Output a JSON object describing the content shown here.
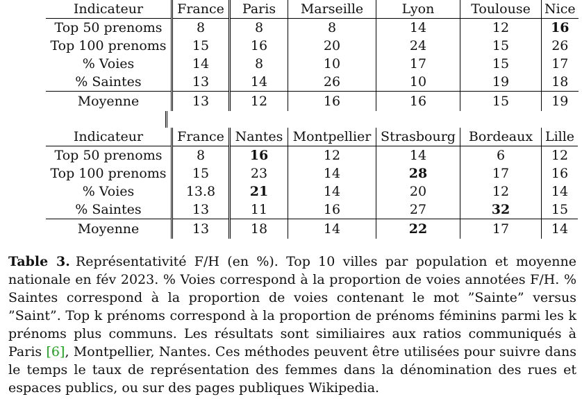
{
  "table_top": {
    "headers": [
      "Indicateur",
      "France",
      "Paris",
      "Marseille",
      "Lyon",
      "Toulouse",
      "Nice"
    ],
    "rows": [
      {
        "cells": [
          "Top 50 prenoms",
          "8",
          "8",
          "8",
          "14",
          "12",
          "16"
        ],
        "bold": [
          6
        ]
      },
      {
        "cells": [
          "Top 100 prenoms",
          "15",
          "16",
          "20",
          "24",
          "15",
          "26"
        ],
        "bold": []
      },
      {
        "cells": [
          "% Voies",
          "14",
          "8",
          "10",
          "17",
          "15",
          "17"
        ],
        "bold": []
      },
      {
        "cells": [
          "% Saintes",
          "13",
          "14",
          "26",
          "10",
          "19",
          "18"
        ],
        "bold": []
      }
    ],
    "average": {
      "cells": [
        "Moyenne",
        "13",
        "12",
        "16",
        "16",
        "15",
        "19"
      ],
      "bold": []
    }
  },
  "table_bottom": {
    "headers": [
      "Indicateur",
      "France",
      "Nantes",
      "Montpellier",
      "Strasbourg",
      "Bordeaux",
      "Lille"
    ],
    "rows": [
      {
        "cells": [
          "Top 50 prenoms",
          "8",
          "16",
          "12",
          "14",
          "6",
          "12"
        ],
        "bold": [
          2
        ]
      },
      {
        "cells": [
          "Top 100 prenoms",
          "15",
          "23",
          "14",
          "28",
          "17",
          "16"
        ],
        "bold": [
          4
        ]
      },
      {
        "cells": [
          "% Voies",
          "13.8",
          "21",
          "14",
          "20",
          "12",
          "14"
        ],
        "bold": [
          2
        ]
      },
      {
        "cells": [
          "% Saintes",
          "13",
          "11",
          "16",
          "27",
          "32",
          "15"
        ],
        "bold": [
          5
        ]
      }
    ],
    "average": {
      "cells": [
        "Moyenne",
        "13",
        "18",
        "14",
        "22",
        "17",
        "14"
      ],
      "bold": [
        4
      ]
    }
  },
  "caption": {
    "label": "Table 3.",
    "text_before_cite": "Représentativité F/H (en %). Top 10 villes par population et moyenne nationale en fév 2023. % Voies correspond à la proportion de voies annotées F/H. % Saintes correspond à la proportion de voies contenant le mot ”Sainte” versus ”Saint”. Top k prénoms correspond à la proportion de prénoms féminins parmi les k prénoms plus communs. Les résultats sont similiaires aux ratios communiqués à Paris ",
    "cite": "[6]",
    "text_after_cite": ", Montpellier, Nantes. Ces méthodes peuvent être utilisées pour suivre dans le temps le taux de représentation des femmes dans la dénomination des rues et espaces publics, ou sur des pages publiques Wikipedia."
  },
  "colors": {
    "text": "#111111",
    "citation": "#1aa51a",
    "rules": "#000000"
  }
}
